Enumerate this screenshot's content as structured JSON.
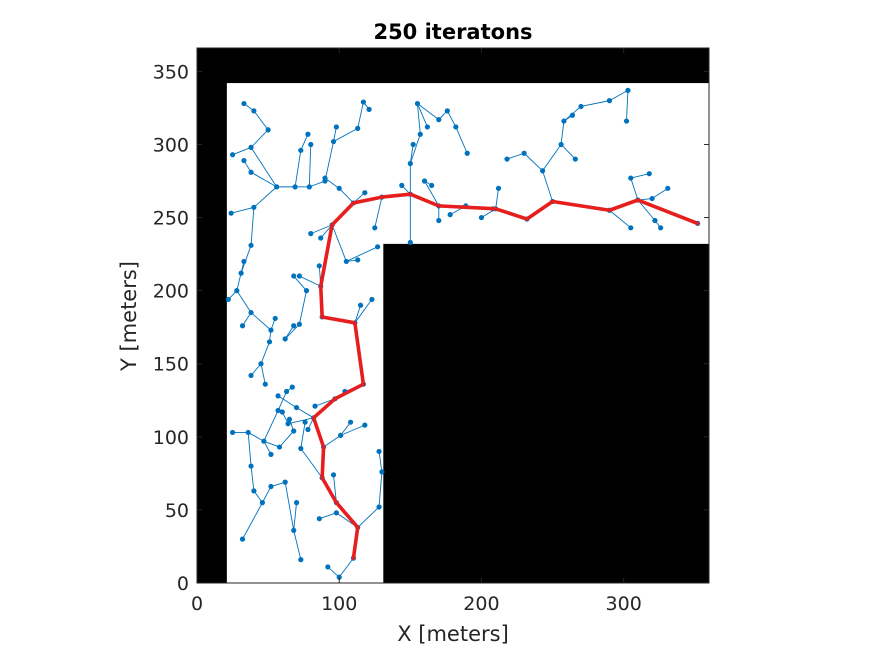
{
  "chart_data": {
    "type": "scatter",
    "title": "250 iteratons",
    "xlabel": "X [meters]",
    "ylabel": "Y [meters]",
    "xlim": [
      0,
      360
    ],
    "ylim": [
      0,
      366
    ],
    "xticks": [
      0,
      100,
      200,
      300
    ],
    "yticks": [
      0,
      50,
      100,
      150,
      200,
      250,
      300,
      350
    ],
    "grid": false,
    "legend": "none",
    "obstacles": [
      {
        "x": [
          0,
          360
        ],
        "y": [
          342,
          366
        ]
      },
      {
        "x": [
          0,
          21
        ],
        "y": [
          0,
          366
        ]
      },
      {
        "x": [
          131,
          360
        ],
        "y": [
          0,
          232
        ]
      }
    ],
    "tree_edges": [
      [
        [
          110,
          17
        ],
        [
          113,
          38
        ]
      ],
      [
        [
          113,
          38
        ],
        [
          98,
          55
        ]
      ],
      [
        [
          98,
          55
        ],
        [
          88,
          72
        ]
      ],
      [
        [
          88,
          72
        ],
        [
          89,
          93
        ]
      ],
      [
        [
          89,
          93
        ],
        [
          82,
          113
        ]
      ],
      [
        [
          82,
          113
        ],
        [
          97,
          126
        ]
      ],
      [
        [
          97,
          126
        ],
        [
          117,
          136
        ]
      ],
      [
        [
          117,
          136
        ],
        [
          111,
          178
        ]
      ],
      [
        [
          111,
          178
        ],
        [
          88,
          182
        ]
      ],
      [
        [
          88,
          182
        ],
        [
          87,
          203
        ]
      ],
      [
        [
          87,
          203
        ],
        [
          95,
          245
        ]
      ],
      [
        [
          95,
          245
        ],
        [
          110,
          260
        ]
      ],
      [
        [
          110,
          260
        ],
        [
          130,
          264
        ]
      ],
      [
        [
          130,
          264
        ],
        [
          150,
          266
        ]
      ],
      [
        [
          150,
          266
        ],
        [
          170,
          258
        ]
      ],
      [
        [
          170,
          258
        ],
        [
          210,
          256
        ]
      ],
      [
        [
          210,
          256
        ],
        [
          232,
          249
        ]
      ],
      [
        [
          232,
          249
        ],
        [
          250,
          261
        ]
      ],
      [
        [
          250,
          261
        ],
        [
          290,
          255
        ]
      ],
      [
        [
          290,
          255
        ],
        [
          310,
          262
        ]
      ],
      [
        [
          310,
          262
        ],
        [
          352,
          246
        ]
      ],
      [
        [
          113,
          38
        ],
        [
          98,
          48
        ]
      ],
      [
        [
          98,
          48
        ],
        [
          86,
          44
        ]
      ],
      [
        [
          98,
          55
        ],
        [
          96,
          74
        ]
      ],
      [
        [
          88,
          72
        ],
        [
          73,
          92
        ]
      ],
      [
        [
          73,
          92
        ],
        [
          76,
          110
        ]
      ],
      [
        [
          82,
          113
        ],
        [
          64,
          109
        ]
      ],
      [
        [
          64,
          109
        ],
        [
          60,
          117
        ]
      ],
      [
        [
          82,
          113
        ],
        [
          78,
          105
        ]
      ],
      [
        [
          89,
          93
        ],
        [
          101,
          101
        ]
      ],
      [
        [
          101,
          101
        ],
        [
          118,
          108
        ]
      ],
      [
        [
          101,
          101
        ],
        [
          108,
          110
        ]
      ],
      [
        [
          97,
          126
        ],
        [
          83,
          121
        ]
      ],
      [
        [
          117,
          136
        ],
        [
          104,
          131
        ]
      ],
      [
        [
          111,
          178
        ],
        [
          115,
          190
        ]
      ],
      [
        [
          111,
          178
        ],
        [
          123,
          194
        ]
      ],
      [
        [
          87,
          203
        ],
        [
          72,
          210
        ]
      ],
      [
        [
          87,
          203
        ],
        [
          86,
          217
        ]
      ],
      [
        [
          95,
          245
        ],
        [
          80,
          239
        ]
      ],
      [
        [
          95,
          245
        ],
        [
          87,
          236
        ]
      ],
      [
        [
          95,
          245
        ],
        [
          105,
          220
        ]
      ],
      [
        [
          105,
          220
        ],
        [
          113,
          221
        ]
      ],
      [
        [
          105,
          220
        ],
        [
          127,
          230
        ]
      ],
      [
        [
          110,
          260
        ],
        [
          100,
          270
        ]
      ],
      [
        [
          100,
          270
        ],
        [
          90,
          277
        ]
      ],
      [
        [
          110,
          260
        ],
        [
          118,
          267
        ]
      ],
      [
        [
          130,
          264
        ],
        [
          125,
          243
        ]
      ],
      [
        [
          150,
          266
        ],
        [
          144,
          272
        ]
      ],
      [
        [
          150,
          266
        ],
        [
          150,
          233
        ]
      ],
      [
        [
          170,
          258
        ],
        [
          160,
          275
        ]
      ],
      [
        [
          160,
          275
        ],
        [
          165,
          272
        ]
      ],
      [
        [
          170,
          258
        ],
        [
          170,
          248
        ]
      ],
      [
        [
          170,
          258
        ],
        [
          189,
          258
        ]
      ],
      [
        [
          189,
          258
        ],
        [
          178,
          252
        ]
      ],
      [
        [
          210,
          256
        ],
        [
          200,
          250
        ]
      ],
      [
        [
          210,
          256
        ],
        [
          212,
          270
        ]
      ],
      [
        [
          210,
          256
        ],
        [
          208,
          256
        ]
      ],
      [
        [
          250,
          261
        ],
        [
          243,
          282
        ]
      ],
      [
        [
          243,
          282
        ],
        [
          230,
          294
        ]
      ],
      [
        [
          230,
          294
        ],
        [
          218,
          290
        ]
      ],
      [
        [
          243,
          282
        ],
        [
          256,
          300
        ]
      ],
      [
        [
          256,
          300
        ],
        [
          266,
          290
        ]
      ],
      [
        [
          256,
          300
        ],
        [
          258,
          316
        ]
      ],
      [
        [
          258,
          316
        ],
        [
          270,
          326
        ]
      ],
      [
        [
          258,
          316
        ],
        [
          264,
          320
        ]
      ],
      [
        [
          270,
          326
        ],
        [
          290,
          330
        ]
      ],
      [
        [
          290,
          330
        ],
        [
          303,
          337
        ]
      ],
      [
        [
          303,
          337
        ],
        [
          302,
          316
        ]
      ],
      [
        [
          290,
          255
        ],
        [
          305,
          243
        ]
      ],
      [
        [
          310,
          262
        ],
        [
          305,
          277
        ]
      ],
      [
        [
          310,
          262
        ],
        [
          320,
          263
        ]
      ],
      [
        [
          305,
          277
        ],
        [
          318,
          280
        ]
      ],
      [
        [
          320,
          263
        ],
        [
          331,
          270
        ]
      ],
      [
        [
          310,
          262
        ],
        [
          322,
          248
        ]
      ],
      [
        [
          322,
          248
        ],
        [
          326,
          243
        ]
      ],
      [
        [
          150,
          266
        ],
        [
          150,
          287
        ]
      ],
      [
        [
          150,
          287
        ],
        [
          157,
          307
        ]
      ],
      [
        [
          157,
          307
        ],
        [
          155,
          328
        ]
      ],
      [
        [
          155,
          328
        ],
        [
          170,
          317
        ]
      ],
      [
        [
          170,
          317
        ],
        [
          176,
          323
        ]
      ],
      [
        [
          155,
          328
        ],
        [
          162,
          312
        ]
      ],
      [
        [
          150,
          287
        ],
        [
          152,
          300
        ]
      ],
      [
        [
          176,
          323
        ],
        [
          182,
          312
        ]
      ],
      [
        [
          182,
          312
        ],
        [
          190,
          294
        ]
      ],
      [
        [
          56,
          271
        ],
        [
          69,
          271
        ]
      ],
      [
        [
          69,
          271
        ],
        [
          79,
          271
        ]
      ],
      [
        [
          79,
          271
        ],
        [
          90,
          275
        ]
      ],
      [
        [
          56,
          271
        ],
        [
          40,
          257
        ]
      ],
      [
        [
          40,
          257
        ],
        [
          38,
          231
        ]
      ],
      [
        [
          38,
          231
        ],
        [
          31,
          212
        ]
      ],
      [
        [
          31,
          212
        ],
        [
          33,
          220
        ]
      ],
      [
        [
          40,
          257
        ],
        [
          24,
          253
        ]
      ],
      [
        [
          56,
          271
        ],
        [
          38,
          281
        ]
      ],
      [
        [
          38,
          281
        ],
        [
          33,
          289
        ]
      ],
      [
        [
          56,
          271
        ],
        [
          38,
          298
        ]
      ],
      [
        [
          38,
          298
        ],
        [
          50,
          310
        ]
      ],
      [
        [
          50,
          310
        ],
        [
          40,
          323
        ]
      ],
      [
        [
          40,
          323
        ],
        [
          33,
          328
        ]
      ],
      [
        [
          38,
          298
        ],
        [
          25,
          293
        ]
      ],
      [
        [
          69,
          271
        ],
        [
          73,
          296
        ]
      ],
      [
        [
          73,
          296
        ],
        [
          78,
          307
        ]
      ],
      [
        [
          79,
          271
        ],
        [
          80,
          300
        ]
      ],
      [
        [
          90,
          275
        ],
        [
          96,
          302
        ]
      ],
      [
        [
          96,
          302
        ],
        [
          113,
          311
        ]
      ],
      [
        [
          113,
          311
        ],
        [
          117,
          329
        ]
      ],
      [
        [
          117,
          329
        ],
        [
          121,
          324
        ]
      ],
      [
        [
          96,
          302
        ],
        [
          98,
          312
        ]
      ],
      [
        [
          31,
          212
        ],
        [
          28,
          200
        ]
      ],
      [
        [
          28,
          200
        ],
        [
          22,
          194
        ]
      ],
      [
        [
          28,
          200
        ],
        [
          38,
          185
        ]
      ],
      [
        [
          38,
          185
        ],
        [
          32,
          176
        ]
      ],
      [
        [
          38,
          185
        ],
        [
          52,
          173
        ]
      ],
      [
        [
          52,
          173
        ],
        [
          51,
          165
        ]
      ],
      [
        [
          51,
          165
        ],
        [
          45,
          150
        ]
      ],
      [
        [
          45,
          150
        ],
        [
          38,
          142
        ]
      ],
      [
        [
          45,
          150
        ],
        [
          48,
          136
        ]
      ],
      [
        [
          52,
          173
        ],
        [
          55,
          181
        ]
      ],
      [
        [
          72,
          177
        ],
        [
          62,
          167
        ]
      ],
      [
        [
          62,
          167
        ],
        [
          68,
          176
        ]
      ],
      [
        [
          72,
          177
        ],
        [
          77,
          200
        ]
      ],
      [
        [
          77,
          200
        ],
        [
          68,
          210
        ]
      ],
      [
        [
          36,
          103
        ],
        [
          47,
          97
        ]
      ],
      [
        [
          47,
          97
        ],
        [
          58,
          93
        ]
      ],
      [
        [
          58,
          93
        ],
        [
          68,
          104
        ]
      ],
      [
        [
          68,
          104
        ],
        [
          65,
          112
        ]
      ],
      [
        [
          47,
          97
        ],
        [
          52,
          88
        ]
      ],
      [
        [
          36,
          103
        ],
        [
          25,
          103
        ]
      ],
      [
        [
          36,
          103
        ],
        [
          38,
          80
        ]
      ],
      [
        [
          38,
          80
        ],
        [
          40,
          63
        ]
      ],
      [
        [
          40,
          63
        ],
        [
          46,
          55
        ]
      ],
      [
        [
          46,
          55
        ],
        [
          52,
          66
        ]
      ],
      [
        [
          52,
          66
        ],
        [
          62,
          69
        ]
      ],
      [
        [
          46,
          55
        ],
        [
          32,
          30
        ]
      ],
      [
        [
          62,
          69
        ],
        [
          68,
          36
        ]
      ],
      [
        [
          68,
          36
        ],
        [
          73,
          16
        ]
      ],
      [
        [
          68,
          36
        ],
        [
          70,
          55
        ]
      ],
      [
        [
          47,
          97
        ],
        [
          57,
          118
        ]
      ],
      [
        [
          57,
          118
        ],
        [
          63,
          131
        ]
      ],
      [
        [
          63,
          131
        ],
        [
          67,
          134
        ]
      ],
      [
        [
          110,
          17
        ],
        [
          100,
          4
        ]
      ],
      [
        [
          100,
          4
        ],
        [
          92,
          11
        ]
      ],
      [
        [
          113,
          38
        ],
        [
          128,
          52
        ]
      ],
      [
        [
          128,
          52
        ],
        [
          130,
          76
        ]
      ],
      [
        [
          130,
          76
        ],
        [
          128,
          90
        ]
      ],
      [
        [
          82,
          113
        ],
        [
          70,
          120
        ]
      ],
      [
        [
          70,
          120
        ],
        [
          57,
          128
        ]
      ]
    ],
    "best_path": {
      "x": [
        110,
        113,
        98,
        88,
        89,
        82,
        97,
        117,
        111,
        88,
        87,
        95,
        110,
        130,
        150,
        170,
        210,
        232,
        250,
        290,
        310,
        352
      ],
      "y": [
        17,
        38,
        55,
        72,
        93,
        113,
        126,
        136,
        178,
        182,
        203,
        245,
        260,
        264,
        266,
        258,
        256,
        249,
        261,
        255,
        262,
        246
      ]
    },
    "colors": {
      "tree": "#0072BD",
      "path": "#E61E1E",
      "obstacle": "#000000",
      "free_space": "#FFFFFF",
      "axis": "#262626"
    }
  }
}
